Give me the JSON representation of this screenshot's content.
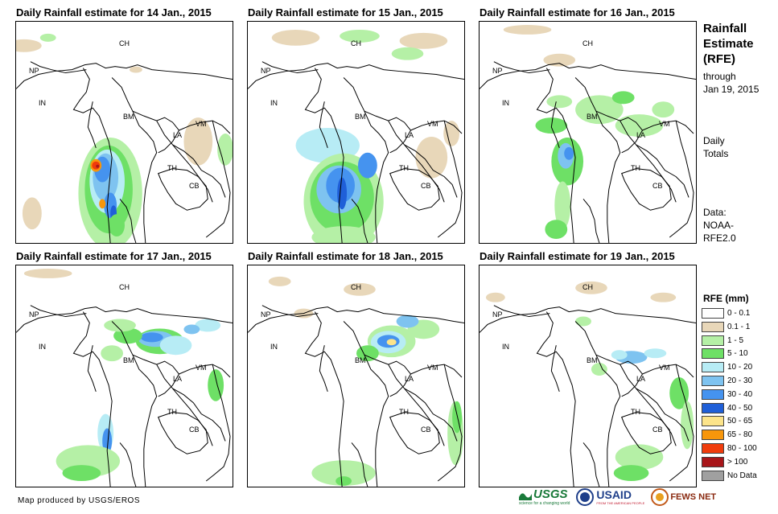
{
  "panels": [
    {
      "title": "Daily Rainfall estimate for 14 Jan., 2015"
    },
    {
      "title": "Daily Rainfall estimate for 15 Jan., 2015"
    },
    {
      "title": "Daily Rainfall estimate for 16 Jan., 2015"
    },
    {
      "title": "Daily Rainfall estimate for 17 Jan., 2015"
    },
    {
      "title": "Daily Rainfall estimate for 18 Jan., 2015"
    },
    {
      "title": "Daily Rainfall estimate for 19 Jan., 2015"
    }
  ],
  "country_labels": {
    "ch": "CH",
    "np": "NP",
    "in": "IN",
    "bm": "BM",
    "la": "LA",
    "vm": "VM",
    "th": "TH",
    "cb": "CB"
  },
  "side": {
    "title_line1": "Rainfall",
    "title_line2": "Estimate",
    "title_line3": "(RFE)",
    "through_line1": "through",
    "through_line2": "Jan 19, 2015",
    "daily_line1": "Daily",
    "daily_line2": "Totals",
    "data_line1": "Data:",
    "data_line2": "NOAA-",
    "data_line3": "RFE2.0"
  },
  "legend": {
    "title": "RFE (mm)",
    "items": [
      {
        "label": "0 - 0.1",
        "color": "#ffffff"
      },
      {
        "label": "0.1 - 1",
        "color": "#e8d7b9"
      },
      {
        "label": "1 - 5",
        "color": "#b5f0a6"
      },
      {
        "label": "5 - 10",
        "color": "#6ee066"
      },
      {
        "label": "10 - 20",
        "color": "#b7ecf5"
      },
      {
        "label": "20 - 30",
        "color": "#7ec3f0"
      },
      {
        "label": "30 - 40",
        "color": "#4593ef"
      },
      {
        "label": "40 - 50",
        "color": "#1f5fd8"
      },
      {
        "label": "50 - 65",
        "color": "#fce48a"
      },
      {
        "label": "65 - 80",
        "color": "#f7960b"
      },
      {
        "label": "80 - 100",
        "color": "#f03c0c"
      },
      {
        "label": "> 100",
        "color": "#a8161a"
      },
      {
        "label": "No Data",
        "color": "#a0a0a0"
      }
    ]
  },
  "credit": "Map produced by USGS/EROS",
  "logos": {
    "usgs": "USGS",
    "usgs_tag": "science for a changing world",
    "usaid": "USAID",
    "usaid_tag": "FROM THE AMERICAN PEOPLE",
    "fews": "FEWS NET"
  }
}
